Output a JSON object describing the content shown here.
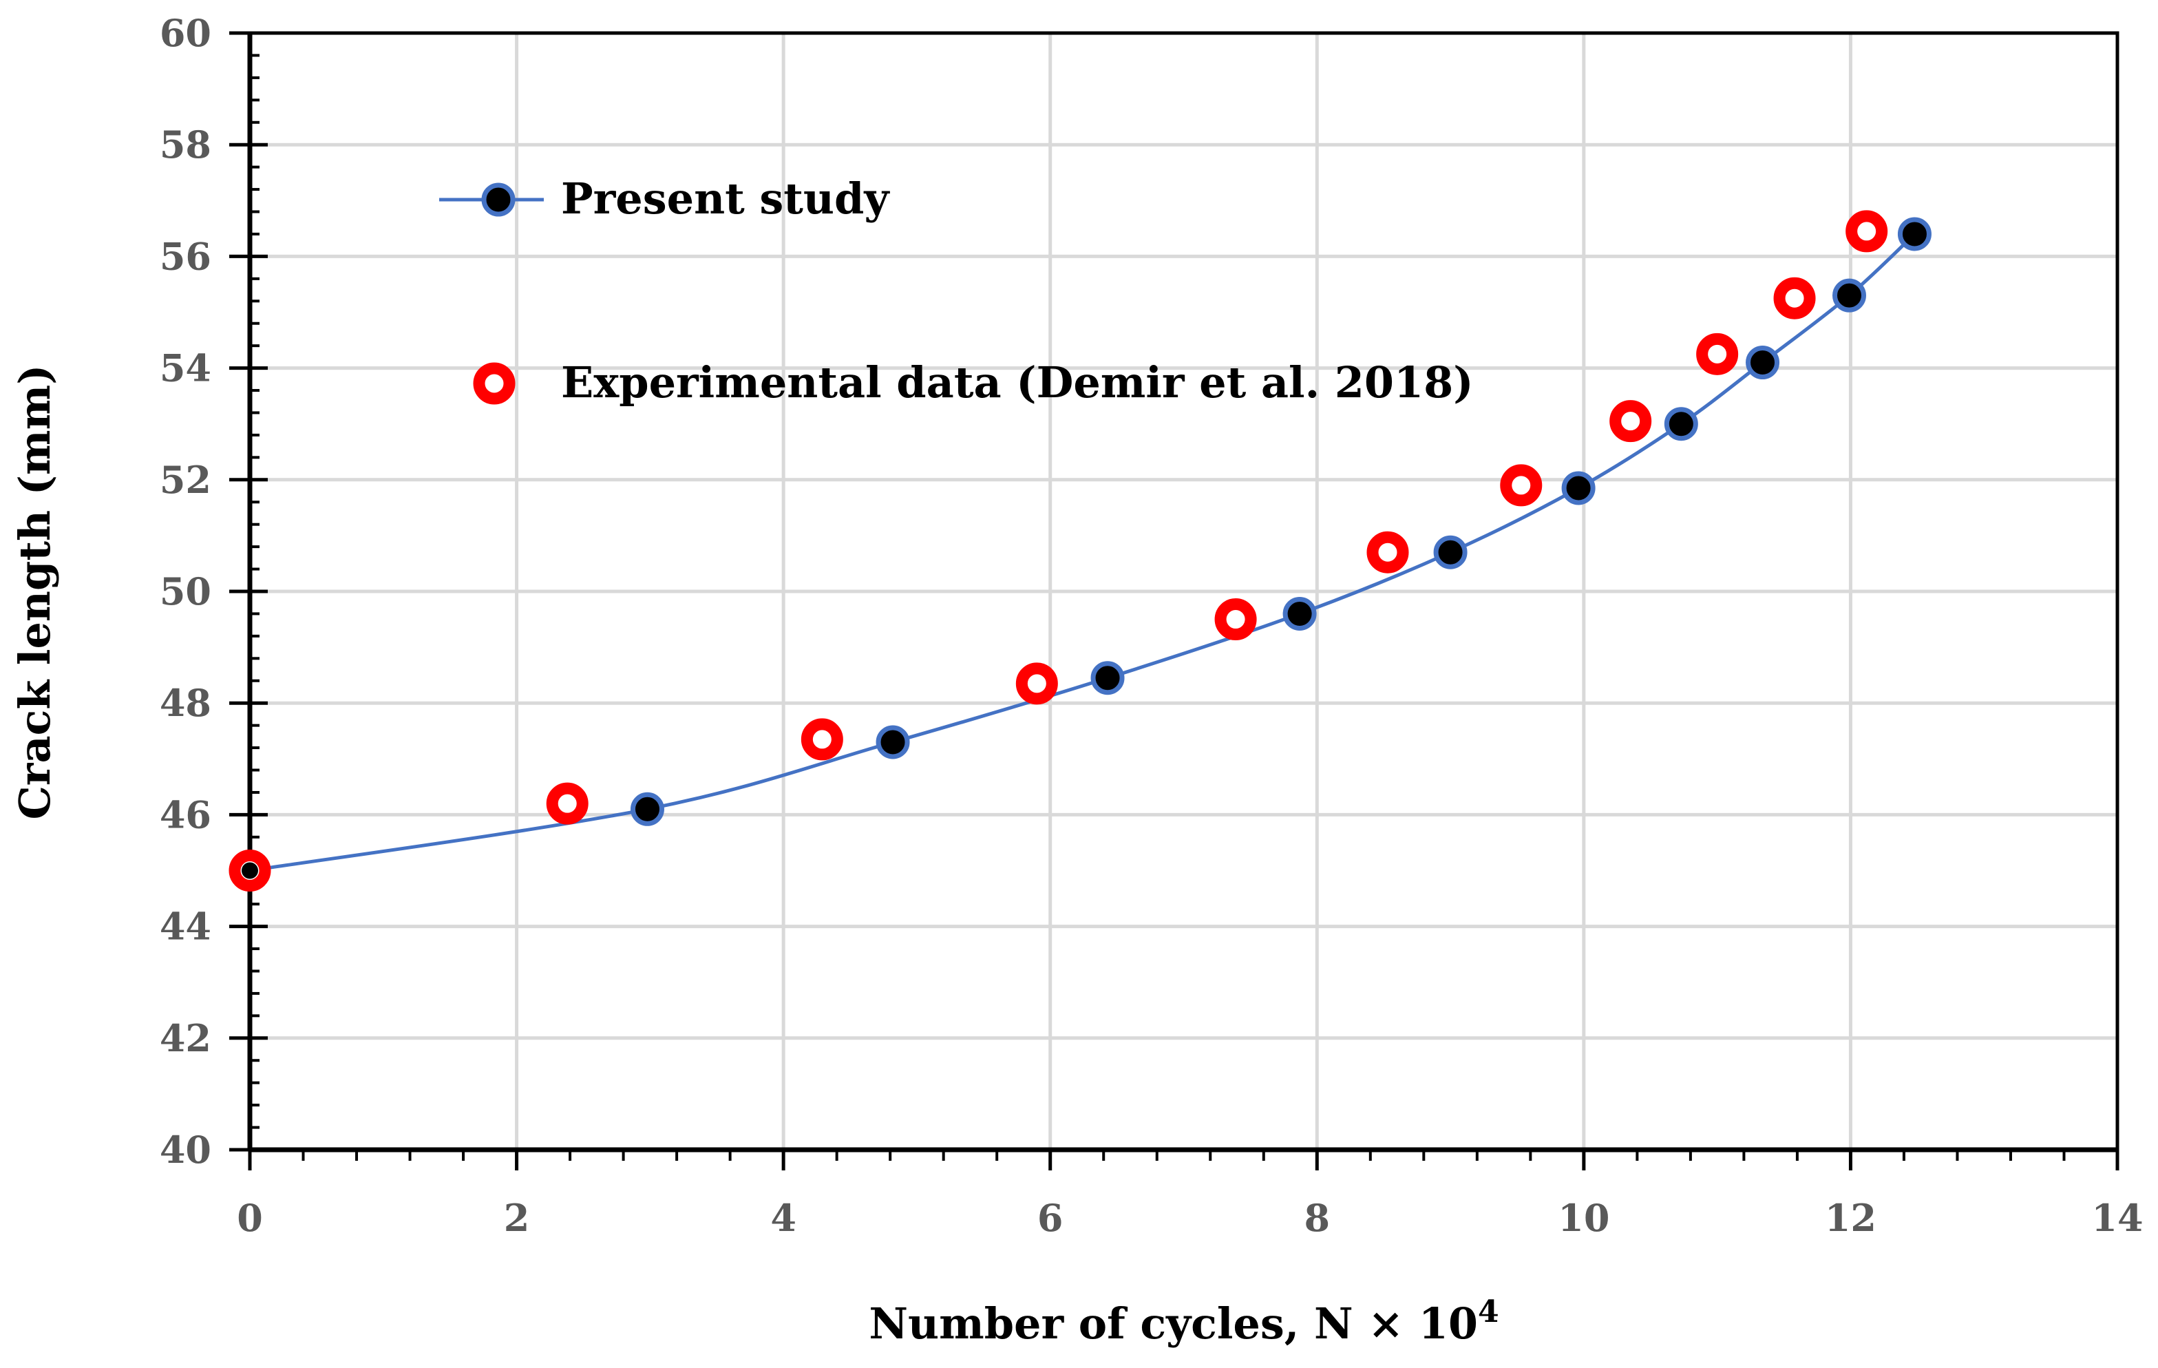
{
  "chart_data": {
    "type": "line",
    "xlabel": "Number of cycles, N × 10",
    "xlabel_sup": "4",
    "ylabel": "Crack length (mm)",
    "xlim": [
      0,
      14
    ],
    "ylim": [
      40,
      60
    ],
    "x_ticks": [
      "0",
      "2",
      "4",
      "6",
      "8",
      "10",
      "12",
      "14"
    ],
    "y_ticks": [
      "40",
      "42",
      "44",
      "46",
      "48",
      "50",
      "52",
      "54",
      "56",
      "58",
      "60"
    ],
    "grid": true,
    "legend_position": "top-left",
    "series": [
      {
        "name": "Present study",
        "style": "line-with-markers",
        "color": "#4472C4",
        "marker_color": "#000000",
        "x": [
          0,
          2.98,
          4.82,
          6.43,
          7.87,
          9.0,
          9.96,
          10.73,
          11.34,
          11.99,
          12.48
        ],
        "y": [
          45.0,
          46.1,
          47.3,
          48.45,
          49.6,
          50.7,
          51.85,
          53.0,
          54.1,
          55.3,
          56.4
        ]
      },
      {
        "name": "Experimental data (Demir et al. 2018)",
        "style": "markers",
        "color": "#FF0000",
        "x": [
          0,
          2.38,
          4.29,
          5.9,
          7.39,
          8.53,
          9.53,
          10.35,
          11.0,
          11.58,
          12.12
        ],
        "y": [
          45.0,
          46.2,
          47.35,
          48.35,
          49.5,
          50.7,
          51.9,
          53.05,
          54.25,
          55.25,
          56.45
        ]
      }
    ]
  }
}
